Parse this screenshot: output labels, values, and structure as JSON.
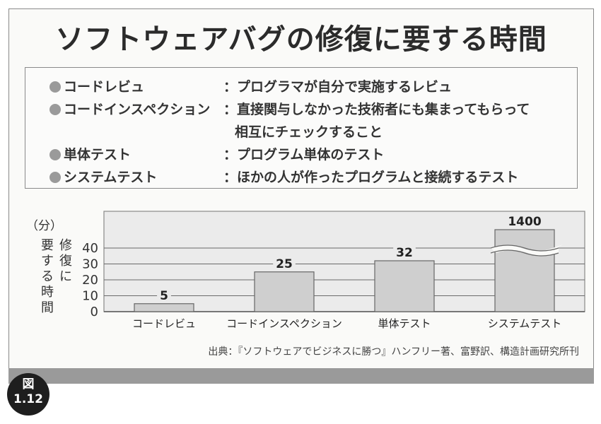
{
  "title": "ソフトウェアバグの修復に要する時間",
  "definitions": [
    {
      "term": "コードレビュ",
      "desc": "：プログラマが自分で実施するレビュ"
    },
    {
      "term": "コードインスペクション",
      "desc": "：直接関与しなかった技術者にも集まってもらって",
      "desc2": "相互にチェックすること"
    },
    {
      "term": "単体テスト",
      "desc": "：プログラム単体のテスト"
    },
    {
      "term": "システムテスト",
      "desc": "：ほかの人が作ったプログラムと接続するテスト"
    }
  ],
  "chart_data": {
    "type": "bar",
    "unit_label": "（分）",
    "ylabel": "修復に要する時間",
    "ylabel_lines": [
      "修復に",
      "要する時間"
    ],
    "categories": [
      "コードレビュ",
      "コードインスペクション",
      "単体テスト",
      "システムテスト"
    ],
    "values": [
      5,
      25,
      32,
      1400
    ],
    "data_labels": [
      "5",
      "25",
      "32",
      "1400"
    ],
    "yticks": [
      0,
      10,
      20,
      30,
      40
    ],
    "ylim": [
      0,
      40
    ],
    "broken_axis_bar": "システムテスト",
    "grid": true,
    "bar_color": "#cfcfcf"
  },
  "source": "出典：『ソフトウェアでビジネスに勝つ』ハンフリー著、富野訳、構造計画研究所刊",
  "figure_badge": {
    "line1": "図",
    "line2": "1.12"
  }
}
